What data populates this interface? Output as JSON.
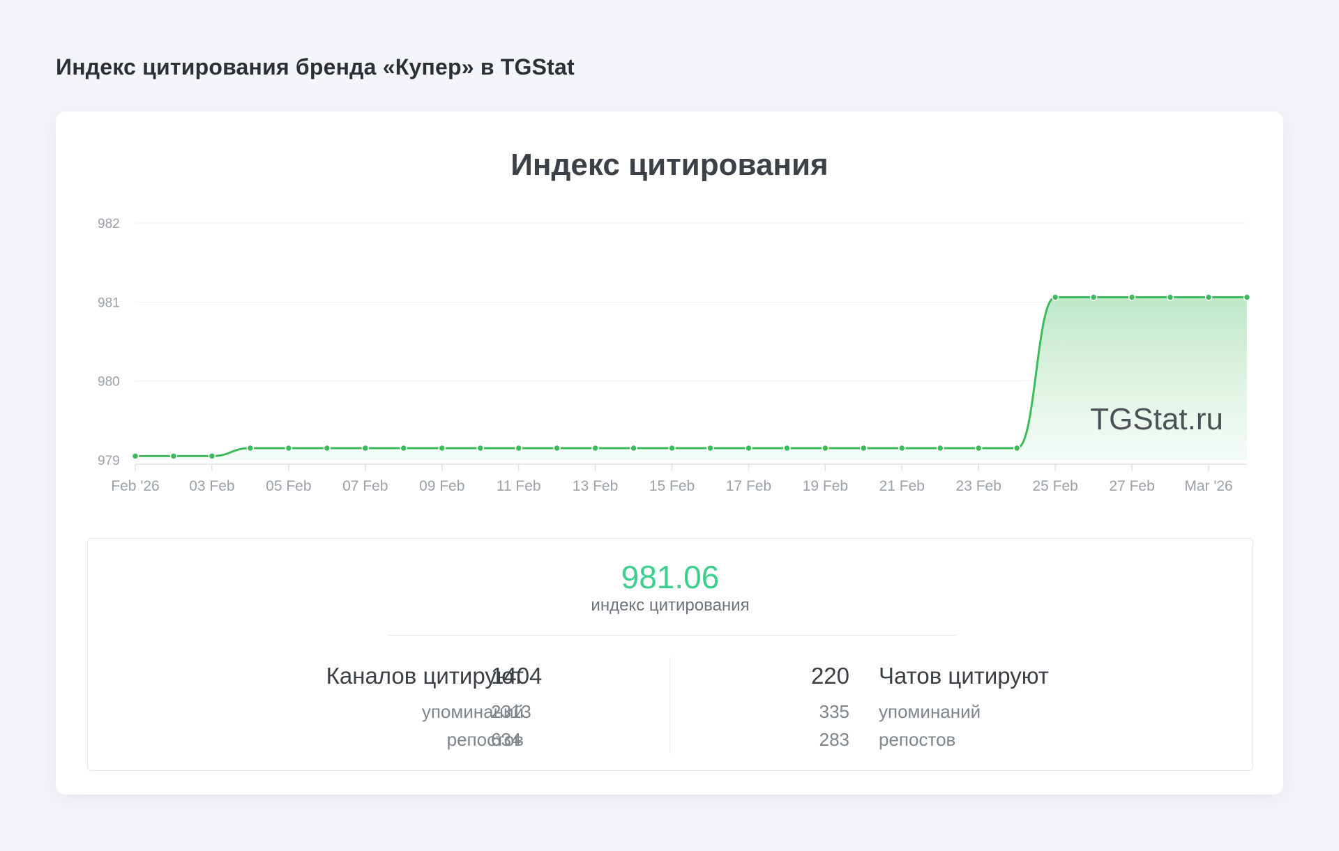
{
  "page_heading": "Индекс цитирования бренда «Купер» в TGStat",
  "colors": {
    "line": "#3dba5c",
    "area_top": "#b9e6c4",
    "area_bottom": "#eef9f1",
    "accent_value": "#3ccf8e"
  },
  "chart_data": {
    "type": "area",
    "title": "Индекс цитирования",
    "watermark": "TGStat.ru",
    "xlabel": "",
    "ylabel": "",
    "ylim": [
      979,
      982
    ],
    "y_ticks": [
      "979",
      "980",
      "981",
      "982"
    ],
    "x_ticks": [
      {
        "label": "Feb '26",
        "index": 0
      },
      {
        "label": "03 Feb",
        "index": 2
      },
      {
        "label": "05 Feb",
        "index": 4
      },
      {
        "label": "07 Feb",
        "index": 6
      },
      {
        "label": "09 Feb",
        "index": 8
      },
      {
        "label": "11 Feb",
        "index": 10
      },
      {
        "label": "13 Feb",
        "index": 12
      },
      {
        "label": "15 Feb",
        "index": 14
      },
      {
        "label": "17 Feb",
        "index": 16
      },
      {
        "label": "19 Feb",
        "index": 18
      },
      {
        "label": "21 Feb",
        "index": 20
      },
      {
        "label": "23 Feb",
        "index": 22
      },
      {
        "label": "25 Feb",
        "index": 24
      },
      {
        "label": "27 Feb",
        "index": 26
      },
      {
        "label": "Mar '26",
        "index": 28
      }
    ],
    "grid": true,
    "legend": "none",
    "series": [
      {
        "values": [
          979.05,
          979.05,
          979.05,
          979.15,
          979.15,
          979.15,
          979.15,
          979.15,
          979.15,
          979.15,
          979.15,
          979.15,
          979.15,
          979.15,
          979.15,
          979.15,
          979.15,
          979.15,
          979.15,
          979.15,
          979.15,
          979.15,
          979.15,
          979.15,
          981.06,
          981.06,
          981.06,
          981.06,
          981.06,
          981.06
        ]
      }
    ]
  },
  "stats": {
    "index_value": "981.06",
    "index_label": "индекс цитирования",
    "channels": {
      "title": "Каналов цитируют",
      "count": "1404",
      "mentions_label": "упоминаний",
      "mentions": "2313",
      "reposts_label": "репостов",
      "reposts": "634"
    },
    "chats": {
      "title": "Чатов цитируют",
      "count": "220",
      "mentions_label": "упоминаний",
      "mentions": "335",
      "reposts_label": "репостов",
      "reposts": "283"
    }
  }
}
